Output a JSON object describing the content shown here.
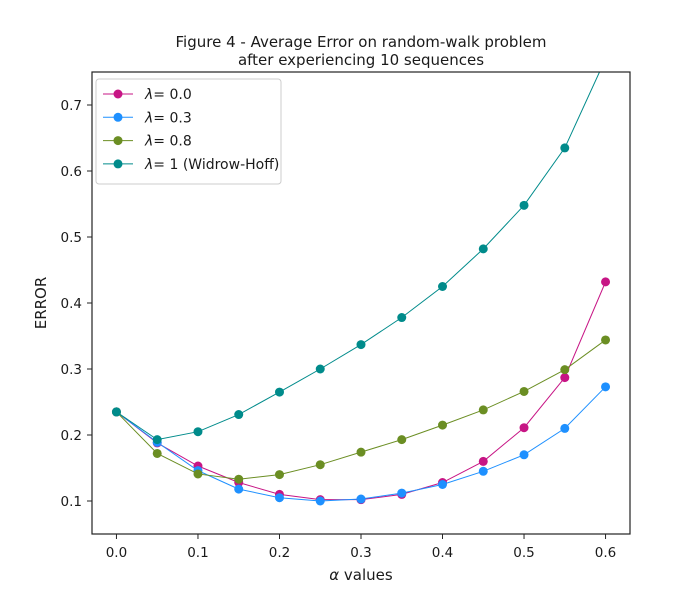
{
  "chart_data": {
    "type": "line",
    "title_line1": "Figure 4 - Average Error on random-walk problem",
    "title_line2": "after experiencing 10 sequences",
    "xlabel_symbol": "α",
    "xlabel_text": " values",
    "ylabel": "ERROR",
    "xlim": [
      -0.03,
      0.63
    ],
    "ylim": [
      0.05,
      0.75
    ],
    "xticks": [
      "0.0",
      "0.1",
      "0.2",
      "0.3",
      "0.4",
      "0.5",
      "0.6"
    ],
    "yticks": [
      "0.1",
      "0.2",
      "0.3",
      "0.4",
      "0.5",
      "0.6",
      "0.7"
    ],
    "grid": false,
    "legend_position": "top-left",
    "x": [
      0.0,
      0.05,
      0.1,
      0.15,
      0.2,
      0.25,
      0.3,
      0.35,
      0.4,
      0.45,
      0.5,
      0.55,
      0.6
    ],
    "series": [
      {
        "legend_symbol": "λ",
        "legend_text": "= 0.0",
        "color": "#c71585",
        "values": [
          0.235,
          0.188,
          0.153,
          0.128,
          0.11,
          0.102,
          0.102,
          0.11,
          0.128,
          0.16,
          0.211,
          0.287,
          0.432
        ]
      },
      {
        "legend_symbol": "λ",
        "legend_text": "= 0.3",
        "color": "#1e90ff",
        "values": [
          0.235,
          0.189,
          0.146,
          0.118,
          0.105,
          0.1,
          0.103,
          0.112,
          0.125,
          0.145,
          0.17,
          0.21,
          0.273
        ]
      },
      {
        "legend_symbol": "λ",
        "legend_text": "= 0.8",
        "color": "#6b8e23",
        "values": [
          0.235,
          0.172,
          0.141,
          0.133,
          0.14,
          0.155,
          0.174,
          0.193,
          0.215,
          0.238,
          0.266,
          0.299,
          0.344
        ]
      },
      {
        "legend_symbol": "λ",
        "legend_text": "= 1 (Widrow-Hoff)",
        "color": "#008b8b",
        "values": [
          0.235,
          0.193,
          0.205,
          0.231,
          0.265,
          0.3,
          0.337,
          0.378,
          0.425,
          0.482,
          0.548,
          0.635,
          0.77
        ]
      }
    ]
  }
}
